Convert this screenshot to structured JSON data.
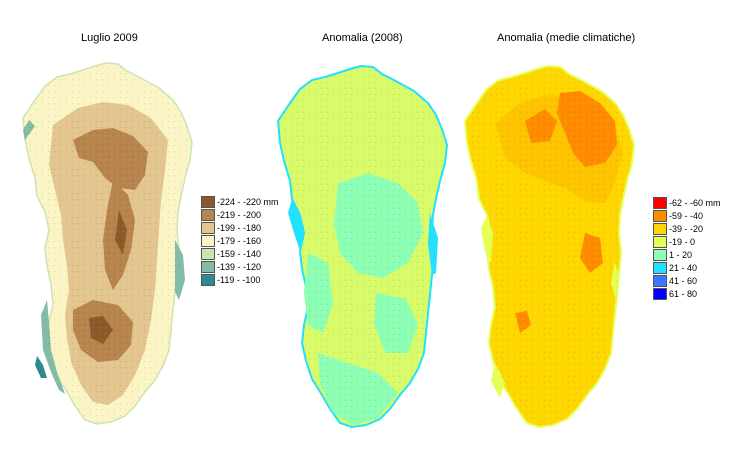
{
  "panels": [
    {
      "title": "Luglio 2009",
      "legend": [
        {
          "label": "-224 - -220 mm",
          "color": "#8b5a2b"
        },
        {
          "label": "-219 - -200",
          "color": "#b8844e"
        },
        {
          "label": "-199 - -180",
          "color": "#e3c58f"
        },
        {
          "label": "-179 - -160",
          "color": "#fbf4c4"
        },
        {
          "label": "-159 - -140",
          "color": "#cde4b2"
        },
        {
          "label": "-139 - -120",
          "color": "#83bba5"
        },
        {
          "label": "-119 - -100",
          "color": "#2e8a8e"
        }
      ]
    },
    {
      "title": "Anomalia (2008)"
    },
    {
      "title": "Anomalia (medie climatiche)",
      "legend": [
        {
          "label": "-62 - -60 mm",
          "color": "#ff0000"
        },
        {
          "label": "-59 - -40",
          "color": "#ff8c00"
        },
        {
          "label": "-39 - -20",
          "color": "#ffd700"
        },
        {
          "label": "-19 - 0",
          "color": "#e6ff55"
        },
        {
          "label": "1 - 20",
          "color": "#8cffb4"
        },
        {
          "label": "21 - 40",
          "color": "#22e0ff"
        },
        {
          "label": "41 - 60",
          "color": "#3c78ff"
        },
        {
          "label": "61 - 80",
          "color": "#0000ff"
        }
      ]
    }
  ]
}
